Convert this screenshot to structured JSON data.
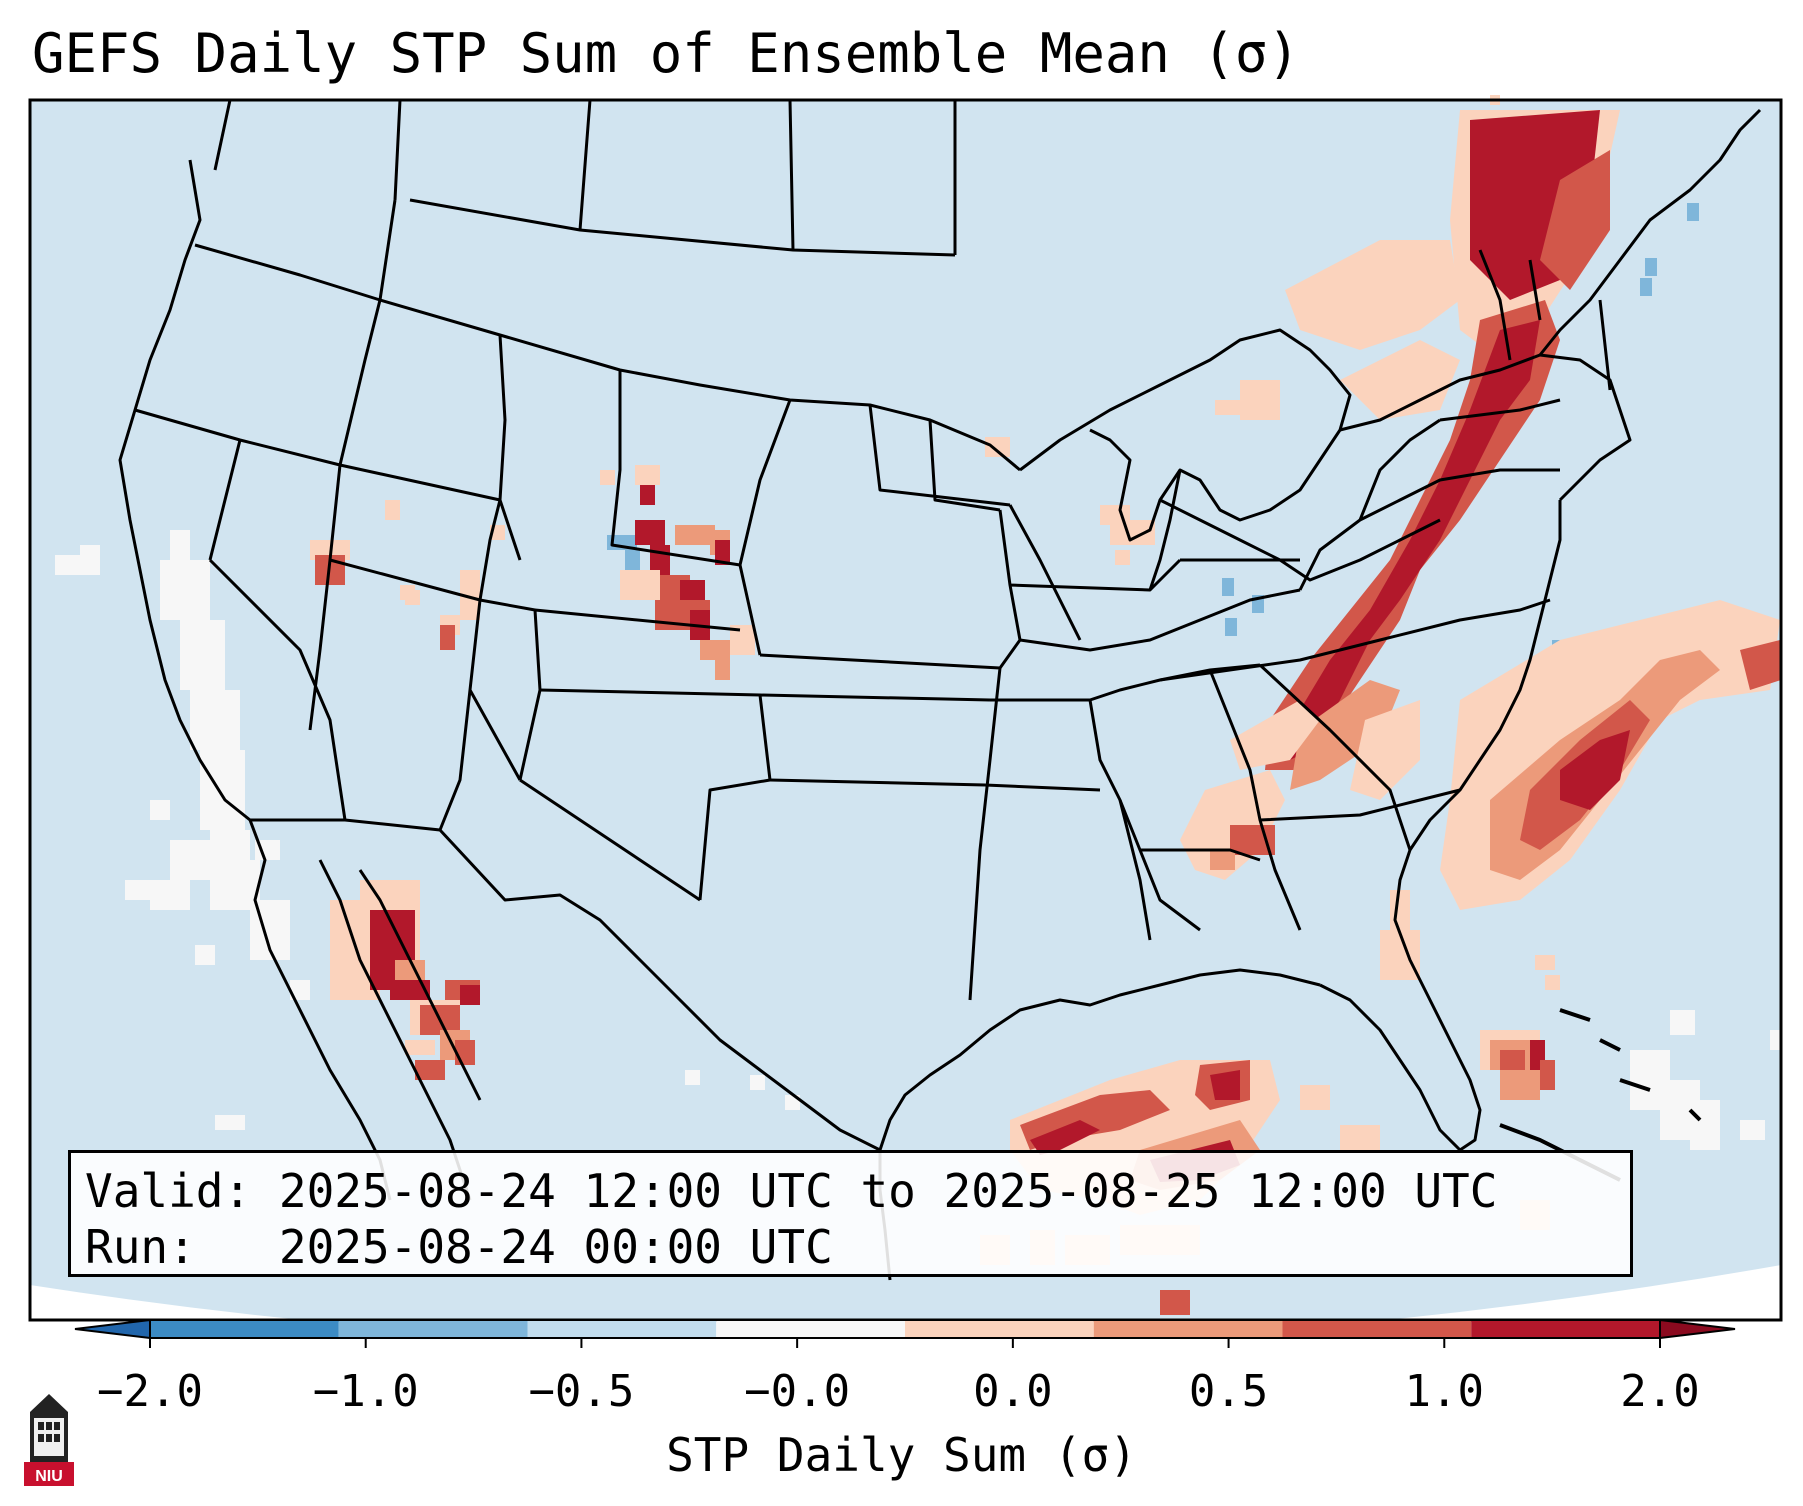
{
  "title": "GEFS Daily STP Sum of Ensemble Mean (σ)",
  "valid_label": "Valid:",
  "valid_value": "2025-08-24 12:00 UTC to 2025-08-25 12:00 UTC",
  "run_label": "Run:",
  "run_value": "2025-08-24 00:00 UTC",
  "colorbar": {
    "label": "STP Daily Sum (σ)",
    "ticks": [
      "−2.0",
      "−1.0",
      "−0.5",
      "−0.0",
      "0.0",
      "0.5",
      "1.0",
      "2.0"
    ],
    "colors": [
      "#3c8bc4",
      "#7fb6da",
      "#c2ddee",
      "#f7f7f7",
      "#fbd3bd",
      "#ec9a7a",
      "#d2574a",
      "#b2182b"
    ]
  },
  "colors": {
    "ocean": "#d1e4f0",
    "border": "#000000"
  },
  "logo_text": "NIU"
}
